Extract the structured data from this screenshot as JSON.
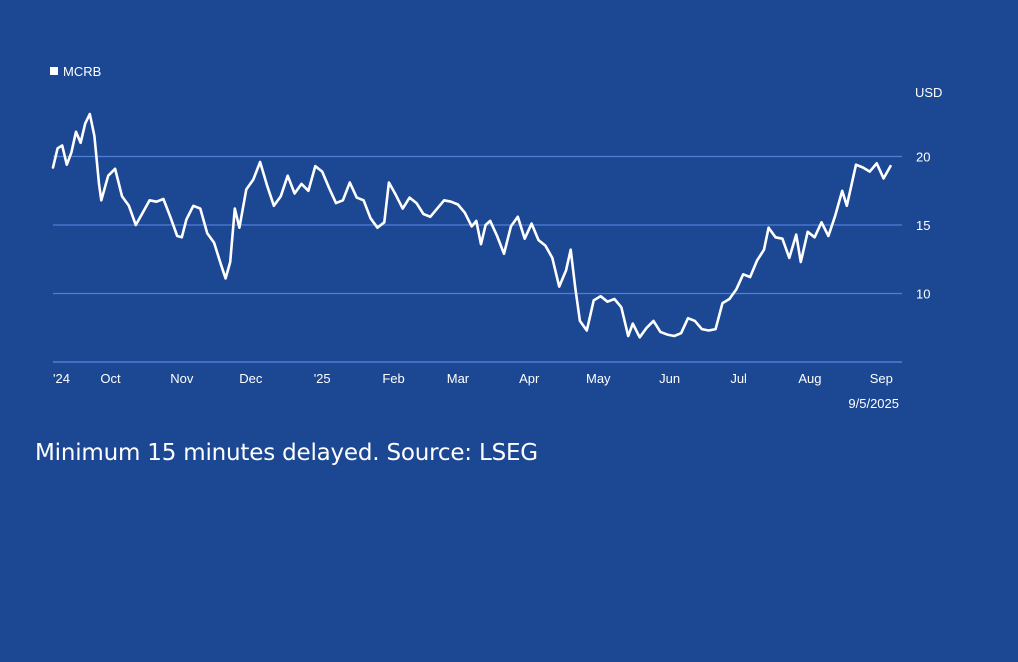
{
  "chart_data": {
    "type": "line",
    "legend": {
      "label": "MCRB",
      "placement": "top-left"
    },
    "y_axis": {
      "unit": "USD",
      "ticks": [
        10,
        15,
        20
      ],
      "range": [
        5,
        25
      ],
      "position": "right"
    },
    "x_axis": {
      "tick_labels": [
        "'24",
        "Oct",
        "Nov",
        "Dec",
        "'25",
        "Feb",
        "Mar",
        "Apr",
        "May",
        "Jun",
        "Jul",
        "Aug",
        "Sep"
      ],
      "tick_dates": [
        "2024-09-06",
        "2024-10-01",
        "2024-11-01",
        "2024-12-01",
        "2025-01-01",
        "2025-02-01",
        "2025-03-01",
        "2025-04-01",
        "2025-05-01",
        "2025-06-01",
        "2025-07-01",
        "2025-08-01",
        "2025-09-01"
      ],
      "range": [
        "2024-09-06",
        "2025-09-10"
      ]
    },
    "date_label": "9/5/2025",
    "grid": true,
    "line_color": "#ffffff",
    "series": [
      {
        "points": [
          [
            "2024-09-06",
            19.2
          ],
          [
            "2024-09-08",
            20.6
          ],
          [
            "2024-09-10",
            20.8
          ],
          [
            "2024-09-12",
            19.4
          ],
          [
            "2024-09-14",
            20.3
          ],
          [
            "2024-09-16",
            21.8
          ],
          [
            "2024-09-18",
            21.0
          ],
          [
            "2024-09-20",
            22.4
          ],
          [
            "2024-09-22",
            23.1
          ],
          [
            "2024-09-24",
            21.5
          ],
          [
            "2024-09-26",
            18.0
          ],
          [
            "2024-09-27",
            16.8
          ],
          [
            "2024-09-30",
            18.6
          ],
          [
            "2024-10-03",
            19.1
          ],
          [
            "2024-10-06",
            17.1
          ],
          [
            "2024-10-09",
            16.4
          ],
          [
            "2024-10-12",
            15.0
          ],
          [
            "2024-10-15",
            15.9
          ],
          [
            "2024-10-18",
            16.8
          ],
          [
            "2024-10-21",
            16.7
          ],
          [
            "2024-10-24",
            16.9
          ],
          [
            "2024-10-27",
            15.6
          ],
          [
            "2024-10-30",
            14.2
          ],
          [
            "2024-11-01",
            14.1
          ],
          [
            "2024-11-03",
            15.4
          ],
          [
            "2024-11-06",
            16.4
          ],
          [
            "2024-11-09",
            16.2
          ],
          [
            "2024-11-12",
            14.4
          ],
          [
            "2024-11-15",
            13.7
          ],
          [
            "2024-11-18",
            12.1
          ],
          [
            "2024-11-20",
            11.1
          ],
          [
            "2024-11-22",
            12.3
          ],
          [
            "2024-11-24",
            16.2
          ],
          [
            "2024-11-26",
            14.8
          ],
          [
            "2024-11-29",
            17.6
          ],
          [
            "2024-12-02",
            18.3
          ],
          [
            "2024-12-05",
            19.6
          ],
          [
            "2024-12-08",
            17.9
          ],
          [
            "2024-12-11",
            16.4
          ],
          [
            "2024-12-14",
            17.1
          ],
          [
            "2024-12-17",
            18.6
          ],
          [
            "2024-12-20",
            17.3
          ],
          [
            "2024-12-23",
            18.0
          ],
          [
            "2024-12-26",
            17.5
          ],
          [
            "2024-12-29",
            19.3
          ],
          [
            "2025-01-01",
            18.9
          ],
          [
            "2025-01-04",
            17.7
          ],
          [
            "2025-01-07",
            16.6
          ],
          [
            "2025-01-10",
            16.8
          ],
          [
            "2025-01-13",
            18.1
          ],
          [
            "2025-01-16",
            17.0
          ],
          [
            "2025-01-19",
            16.8
          ],
          [
            "2025-01-22",
            15.5
          ],
          [
            "2025-01-25",
            14.8
          ],
          [
            "2025-01-28",
            15.2
          ],
          [
            "2025-01-30",
            18.1
          ],
          [
            "2025-02-02",
            17.2
          ],
          [
            "2025-02-05",
            16.2
          ],
          [
            "2025-02-08",
            17.0
          ],
          [
            "2025-02-11",
            16.6
          ],
          [
            "2025-02-14",
            15.8
          ],
          [
            "2025-02-17",
            15.6
          ],
          [
            "2025-02-20",
            16.2
          ],
          [
            "2025-02-23",
            16.8
          ],
          [
            "2025-02-26",
            16.7
          ],
          [
            "2025-03-01",
            16.5
          ],
          [
            "2025-03-04",
            15.9
          ],
          [
            "2025-03-07",
            14.9
          ],
          [
            "2025-03-09",
            15.3
          ],
          [
            "2025-03-11",
            13.6
          ],
          [
            "2025-03-13",
            15.0
          ],
          [
            "2025-03-15",
            15.3
          ],
          [
            "2025-03-18",
            14.2
          ],
          [
            "2025-03-21",
            12.9
          ],
          [
            "2025-03-24",
            14.9
          ],
          [
            "2025-03-27",
            15.6
          ],
          [
            "2025-03-30",
            14.0
          ],
          [
            "2025-04-02",
            15.1
          ],
          [
            "2025-04-05",
            13.9
          ],
          [
            "2025-04-08",
            13.5
          ],
          [
            "2025-04-11",
            12.6
          ],
          [
            "2025-04-14",
            10.5
          ],
          [
            "2025-04-17",
            11.7
          ],
          [
            "2025-04-19",
            13.2
          ],
          [
            "2025-04-21",
            10.4
          ],
          [
            "2025-04-23",
            8.0
          ],
          [
            "2025-04-26",
            7.3
          ],
          [
            "2025-04-29",
            9.5
          ],
          [
            "2025-05-02",
            9.8
          ],
          [
            "2025-05-05",
            9.4
          ],
          [
            "2025-05-08",
            9.6
          ],
          [
            "2025-05-11",
            9.0
          ],
          [
            "2025-05-14",
            6.9
          ],
          [
            "2025-05-16",
            7.8
          ],
          [
            "2025-05-19",
            6.8
          ],
          [
            "2025-05-22",
            7.5
          ],
          [
            "2025-05-25",
            8.0
          ],
          [
            "2025-05-28",
            7.2
          ],
          [
            "2025-05-31",
            7.0
          ],
          [
            "2025-06-03",
            6.9
          ],
          [
            "2025-06-06",
            7.1
          ],
          [
            "2025-06-09",
            8.2
          ],
          [
            "2025-06-12",
            8.0
          ],
          [
            "2025-06-15",
            7.4
          ],
          [
            "2025-06-18",
            7.3
          ],
          [
            "2025-06-21",
            7.4
          ],
          [
            "2025-06-24",
            9.3
          ],
          [
            "2025-06-27",
            9.6
          ],
          [
            "2025-06-30",
            10.3
          ],
          [
            "2025-07-03",
            11.4
          ],
          [
            "2025-07-06",
            11.2
          ],
          [
            "2025-07-09",
            12.4
          ],
          [
            "2025-07-12",
            13.2
          ],
          [
            "2025-07-14",
            14.8
          ],
          [
            "2025-07-17",
            14.1
          ],
          [
            "2025-07-20",
            14.0
          ],
          [
            "2025-07-23",
            12.6
          ],
          [
            "2025-07-26",
            14.3
          ],
          [
            "2025-07-28",
            12.3
          ],
          [
            "2025-07-31",
            14.5
          ],
          [
            "2025-08-03",
            14.1
          ],
          [
            "2025-08-06",
            15.2
          ],
          [
            "2025-08-09",
            14.2
          ],
          [
            "2025-08-12",
            15.7
          ],
          [
            "2025-08-15",
            17.5
          ],
          [
            "2025-08-17",
            16.4
          ],
          [
            "2025-08-19",
            17.9
          ],
          [
            "2025-08-21",
            19.4
          ],
          [
            "2025-08-24",
            19.2
          ],
          [
            "2025-08-27",
            18.9
          ],
          [
            "2025-08-30",
            19.5
          ],
          [
            "2025-09-02",
            18.4
          ],
          [
            "2025-09-05",
            19.3
          ]
        ]
      }
    ]
  },
  "footer": {
    "note": "Minimum 15 minutes delayed. Source: LSEG"
  }
}
